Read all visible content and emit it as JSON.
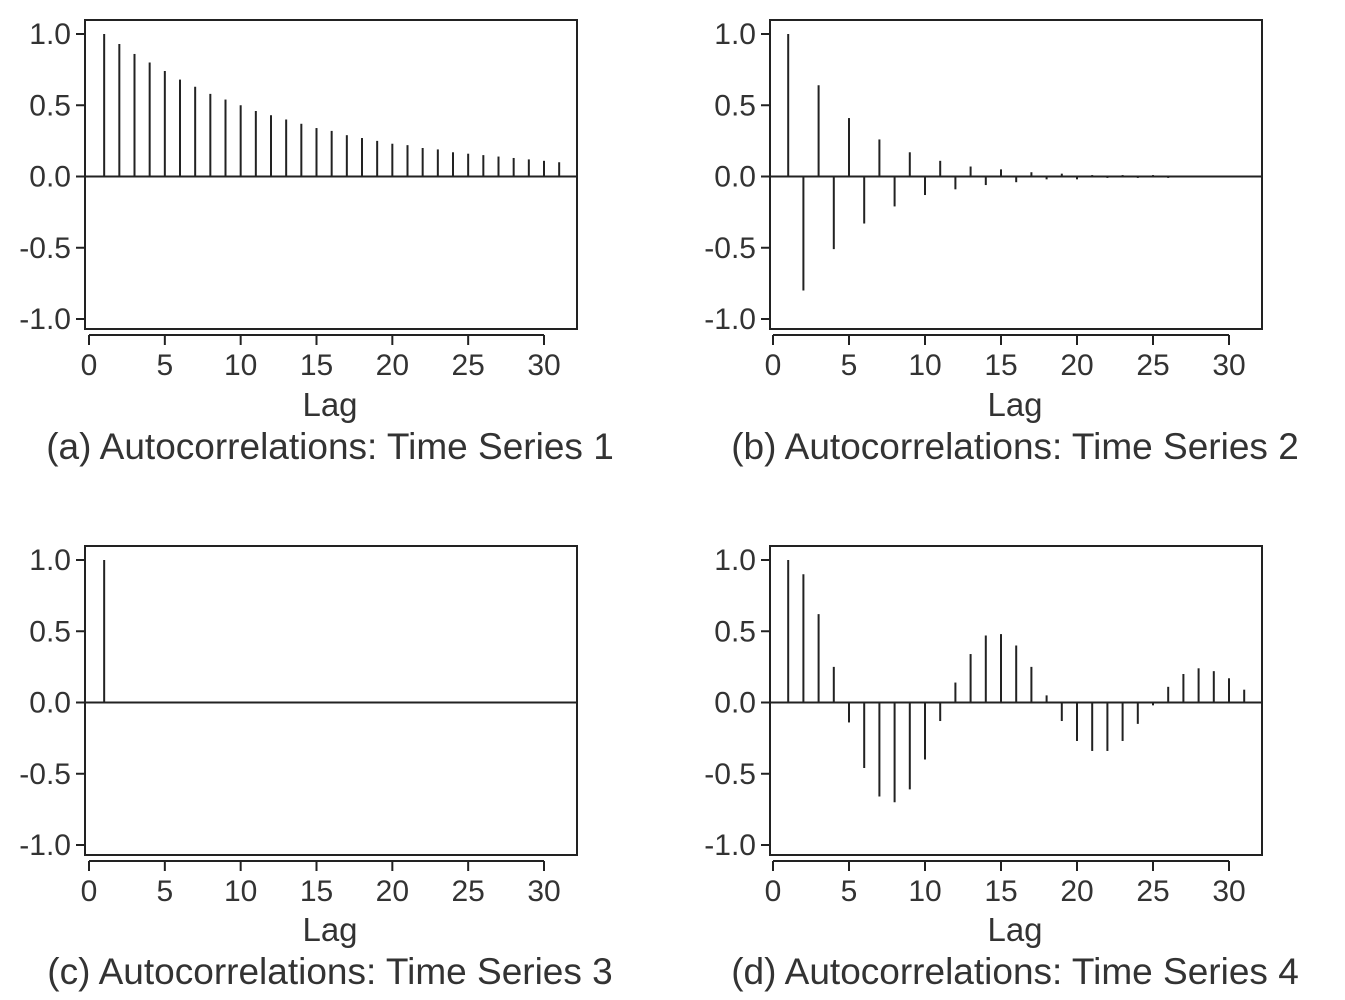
{
  "chart_data": [
    {
      "type": "bar",
      "caption": "(a) Autocorrelations: Time Series 1",
      "xlabel": "Lag",
      "ylabel": "",
      "xlim": [
        0,
        32
      ],
      "ylim": [
        -1.0,
        1.0
      ],
      "xticks": [
        "0",
        "5",
        "10",
        "15",
        "20",
        "25",
        "30"
      ],
      "yticks": [
        "1.0",
        "0.5",
        "0.0",
        "-0.5",
        "-1.0"
      ],
      "grid": false,
      "x": [
        1,
        2,
        3,
        4,
        5,
        6,
        7,
        8,
        9,
        10,
        11,
        12,
        13,
        14,
        15,
        16,
        17,
        18,
        19,
        20,
        21,
        22,
        23,
        24,
        25,
        26,
        27,
        28,
        29,
        30,
        31
      ],
      "values": [
        1.0,
        0.93,
        0.86,
        0.8,
        0.74,
        0.68,
        0.63,
        0.58,
        0.54,
        0.5,
        0.46,
        0.43,
        0.4,
        0.37,
        0.34,
        0.32,
        0.29,
        0.27,
        0.25,
        0.23,
        0.22,
        0.2,
        0.19,
        0.17,
        0.16,
        0.15,
        0.14,
        0.13,
        0.12,
        0.11,
        0.1
      ],
      "color": "#222222"
    },
    {
      "type": "bar",
      "caption": "(b) Autocorrelations: Time Series 2",
      "xlabel": "Lag",
      "ylabel": "",
      "xlim": [
        0,
        32
      ],
      "ylim": [
        -1.0,
        1.0
      ],
      "xticks": [
        "0",
        "5",
        "10",
        "15",
        "20",
        "25",
        "30"
      ],
      "yticks": [
        "1.0",
        "0.5",
        "0.0",
        "-0.5",
        "-1.0"
      ],
      "grid": false,
      "x": [
        1,
        2,
        3,
        4,
        5,
        6,
        7,
        8,
        9,
        10,
        11,
        12,
        13,
        14,
        15,
        16,
        17,
        18,
        19,
        20,
        21,
        22,
        23,
        24,
        25,
        26,
        27,
        28
      ],
      "values": [
        1.0,
        -0.8,
        0.64,
        -0.51,
        0.41,
        -0.33,
        0.26,
        -0.21,
        0.17,
        -0.13,
        0.11,
        -0.09,
        0.07,
        -0.06,
        0.05,
        -0.04,
        0.03,
        -0.02,
        0.02,
        -0.02,
        0.01,
        -0.01,
        0.01,
        -0.01,
        0.01,
        -0.01,
        0.005,
        -0.005
      ],
      "color": "#222222"
    },
    {
      "type": "bar",
      "caption": "(c) Autocorrelations: Time Series 3",
      "xlabel": "Lag",
      "ylabel": "",
      "xlim": [
        0,
        32
      ],
      "ylim": [
        -1.0,
        1.0
      ],
      "xticks": [
        "0",
        "5",
        "10",
        "15",
        "20",
        "25",
        "30"
      ],
      "yticks": [
        "1.0",
        "0.5",
        "0.0",
        "-0.5",
        "-1.0"
      ],
      "grid": false,
      "x": [
        1
      ],
      "values": [
        1.0
      ],
      "color": "#222222"
    },
    {
      "type": "bar",
      "caption": "(d) Autocorrelations: Time Series 4",
      "xlabel": "Lag",
      "ylabel": "",
      "xlim": [
        0,
        32
      ],
      "ylim": [
        -1.0,
        1.0
      ],
      "xticks": [
        "0",
        "5",
        "10",
        "15",
        "20",
        "25",
        "30"
      ],
      "yticks": [
        "1.0",
        "0.5",
        "0.0",
        "-0.5",
        "-1.0"
      ],
      "grid": false,
      "x": [
        1,
        2,
        3,
        4,
        5,
        6,
        7,
        8,
        9,
        10,
        11,
        12,
        13,
        14,
        15,
        16,
        17,
        18,
        19,
        20,
        21,
        22,
        23,
        24,
        25,
        26,
        27,
        28,
        29,
        30,
        31
      ],
      "values": [
        1.0,
        0.9,
        0.62,
        0.25,
        -0.14,
        -0.46,
        -0.66,
        -0.7,
        -0.61,
        -0.4,
        -0.13,
        0.14,
        0.34,
        0.47,
        0.48,
        0.4,
        0.25,
        0.05,
        -0.13,
        -0.27,
        -0.34,
        -0.34,
        -0.27,
        -0.15,
        -0.02,
        0.11,
        0.2,
        0.24,
        0.22,
        0.17,
        0.09
      ],
      "color": "#222222"
    }
  ]
}
